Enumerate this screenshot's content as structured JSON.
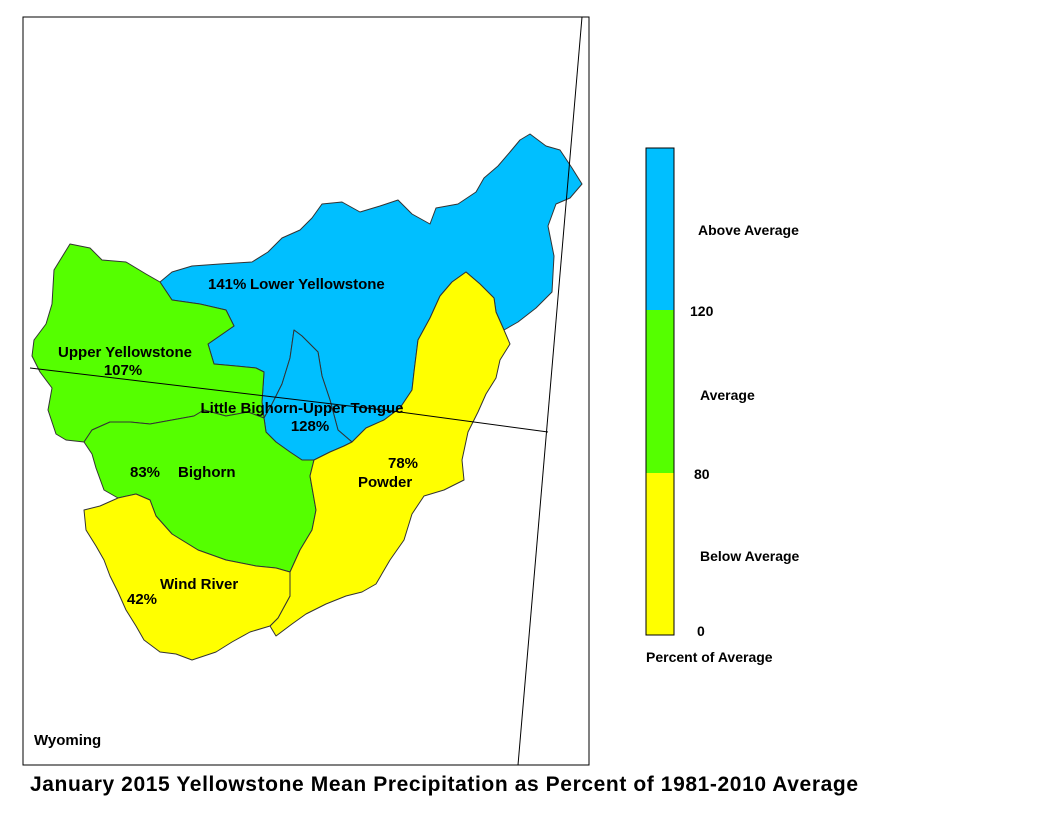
{
  "title": "January 2015 Yellowstone Mean Precipitation as Percent of 1981-2010 Average",
  "state_label": "Wyoming",
  "colors": {
    "above": "#00bfff",
    "average": "#55ff00",
    "below": "#ffff00",
    "boundary": "#333333"
  },
  "basins": [
    {
      "id": "lower-yellowstone",
      "name": "Lower Yellowstone",
      "percent": "141%",
      "category": "above"
    },
    {
      "id": "upper-yellowstone",
      "name": "Upper Yellowstone",
      "percent": "107%",
      "category": "average"
    },
    {
      "id": "little-bighorn-upper-tongue",
      "name": "Little Bighorn-Upper Tongue",
      "percent": "128%",
      "category": "above"
    },
    {
      "id": "bighorn",
      "name": "Bighorn",
      "percent": "83%",
      "category": "average"
    },
    {
      "id": "powder",
      "name": "Powder",
      "percent": "78%",
      "category": "below"
    },
    {
      "id": "wind-river",
      "name": "Wind River",
      "percent": "42%",
      "category": "below"
    }
  ],
  "legend": {
    "title": "Percent of Average",
    "categories": [
      "Above Average",
      "Average",
      "Below Average"
    ],
    "breaks": [
      "120",
      "80",
      "0"
    ]
  }
}
